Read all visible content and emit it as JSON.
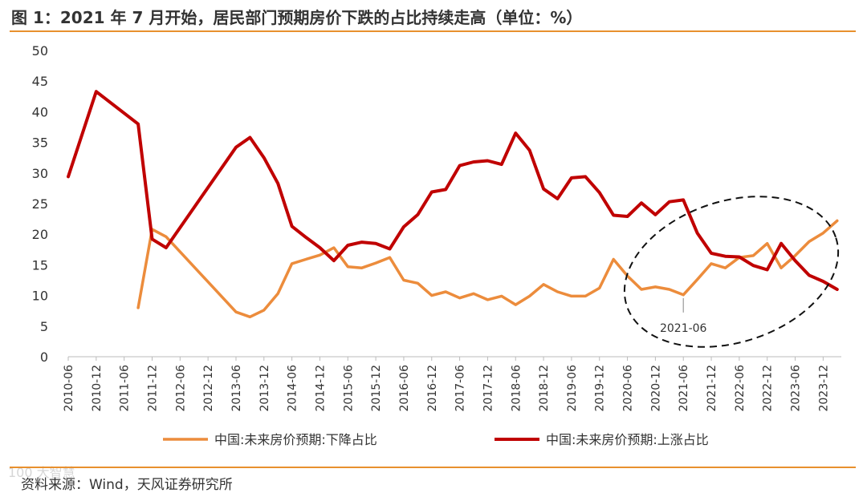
{
  "title": "图 1：2021 年 7 月开始，居民部门预期房价下跌的占比持续走高（单位：%）",
  "source": "资料来源：Wind，天风证券研究所",
  "watermark": "100 大智慧",
  "colors": {
    "accent_rule": "#e8902e",
    "fall_series": "#ec8c3c",
    "rise_series": "#c00000",
    "axis": "#bbbbbb"
  },
  "chart_data": {
    "type": "line",
    "title": "",
    "xlabel": "",
    "ylabel": "",
    "ylim": [
      0,
      50
    ],
    "yticks": [
      "0",
      "5",
      "10",
      "15",
      "20",
      "25",
      "30",
      "35",
      "40",
      "45",
      "50"
    ],
    "xticks": [
      "2010-06",
      "2010-12",
      "2011-06",
      "2011-12",
      "2012-06",
      "2012-12",
      "2013-06",
      "2013-12",
      "2014-06",
      "2014-12",
      "2015-06",
      "2015-12",
      "2016-06",
      "2016-12",
      "2017-06",
      "2017-12",
      "2018-06",
      "2018-12",
      "2019-06",
      "2019-12",
      "2020-06",
      "2020-12",
      "2021-06",
      "2021-12",
      "2022-06",
      "2022-12",
      "2023-06",
      "2023-12"
    ],
    "grid": false,
    "legend_position": "bottom",
    "series": [
      {
        "name": "中国:未来房价预期:下降占比",
        "color": "#ec8c3c",
        "points": [
          [
            "2011-09",
            8.0
          ],
          [
            "2011-12",
            20.8
          ],
          [
            "2012-03",
            19.6
          ],
          [
            "2013-06",
            7.3
          ],
          [
            "2013-09",
            6.5
          ],
          [
            "2013-12",
            7.6
          ],
          [
            "2014-03",
            10.3
          ],
          [
            "2014-06",
            15.2
          ],
          [
            "2014-09",
            15.9
          ],
          [
            "2014-12",
            16.6
          ],
          [
            "2015-03",
            17.8
          ],
          [
            "2015-06",
            14.7
          ],
          [
            "2015-09",
            14.5
          ],
          [
            "2015-12",
            15.3
          ],
          [
            "2016-03",
            16.2
          ],
          [
            "2016-06",
            12.5
          ],
          [
            "2016-09",
            12.0
          ],
          [
            "2016-12",
            10.0
          ],
          [
            "2017-03",
            10.6
          ],
          [
            "2017-06",
            9.6
          ],
          [
            "2017-09",
            10.3
          ],
          [
            "2017-12",
            9.3
          ],
          [
            "2018-03",
            9.9
          ],
          [
            "2018-06",
            8.5
          ],
          [
            "2018-09",
            9.9
          ],
          [
            "2018-12",
            11.8
          ],
          [
            "2019-03",
            10.6
          ],
          [
            "2019-06",
            9.9
          ],
          [
            "2019-09",
            9.9
          ],
          [
            "2019-12",
            11.2
          ],
          [
            "2020-03",
            15.9
          ],
          [
            "2020-06",
            13.2
          ],
          [
            "2020-09",
            11.0
          ],
          [
            "2020-12",
            11.4
          ],
          [
            "2021-03",
            11.0
          ],
          [
            "2021-06",
            10.1
          ],
          [
            "2021-09",
            12.6
          ],
          [
            "2021-12",
            15.2
          ],
          [
            "2022-03",
            14.5
          ],
          [
            "2022-06",
            16.2
          ],
          [
            "2022-09",
            16.5
          ],
          [
            "2022-12",
            18.5
          ],
          [
            "2023-03",
            14.5
          ],
          [
            "2023-06",
            16.5
          ],
          [
            "2023-09",
            18.8
          ],
          [
            "2023-12",
            20.2
          ],
          [
            "2024-03",
            22.2
          ]
        ]
      },
      {
        "name": "中国:未来房价预期:上涨占比",
        "color": "#c00000",
        "points": [
          [
            "2010-06",
            29.4
          ],
          [
            "2010-12",
            43.3
          ],
          [
            "2011-09",
            38.0
          ],
          [
            "2011-12",
            19.2
          ],
          [
            "2012-03",
            17.8
          ],
          [
            "2013-06",
            34.2
          ],
          [
            "2013-09",
            35.8
          ],
          [
            "2013-12",
            32.5
          ],
          [
            "2014-03",
            28.3
          ],
          [
            "2014-06",
            21.3
          ],
          [
            "2014-09",
            19.5
          ],
          [
            "2014-12",
            17.8
          ],
          [
            "2015-03",
            15.7
          ],
          [
            "2015-06",
            18.2
          ],
          [
            "2015-09",
            18.7
          ],
          [
            "2015-12",
            18.5
          ],
          [
            "2016-03",
            17.6
          ],
          [
            "2016-06",
            21.2
          ],
          [
            "2016-09",
            23.2
          ],
          [
            "2016-12",
            26.9
          ],
          [
            "2017-03",
            27.3
          ],
          [
            "2017-06",
            31.2
          ],
          [
            "2017-09",
            31.8
          ],
          [
            "2017-12",
            32.0
          ],
          [
            "2018-03",
            31.4
          ],
          [
            "2018-06",
            36.5
          ],
          [
            "2018-09",
            33.7
          ],
          [
            "2018-12",
            27.4
          ],
          [
            "2019-03",
            25.8
          ],
          [
            "2019-06",
            29.2
          ],
          [
            "2019-09",
            29.4
          ],
          [
            "2019-12",
            26.8
          ],
          [
            "2020-03",
            23.1
          ],
          [
            "2020-06",
            22.9
          ],
          [
            "2020-09",
            25.1
          ],
          [
            "2020-12",
            23.2
          ],
          [
            "2021-03",
            25.3
          ],
          [
            "2021-06",
            25.6
          ],
          [
            "2021-09",
            20.2
          ],
          [
            "2021-12",
            16.9
          ],
          [
            "2022-03",
            16.4
          ],
          [
            "2022-06",
            16.3
          ],
          [
            "2022-09",
            14.9
          ],
          [
            "2022-12",
            14.2
          ],
          [
            "2023-03",
            18.5
          ],
          [
            "2023-06",
            15.7
          ],
          [
            "2023-09",
            13.3
          ],
          [
            "2023-12",
            12.3
          ],
          [
            "2024-03",
            11.0
          ]
        ]
      }
    ],
    "annotations": [
      {
        "text": "2021-06",
        "x": "2021-06",
        "y": 10.1,
        "style": "dashed-ellipse-highlight"
      }
    ]
  }
}
